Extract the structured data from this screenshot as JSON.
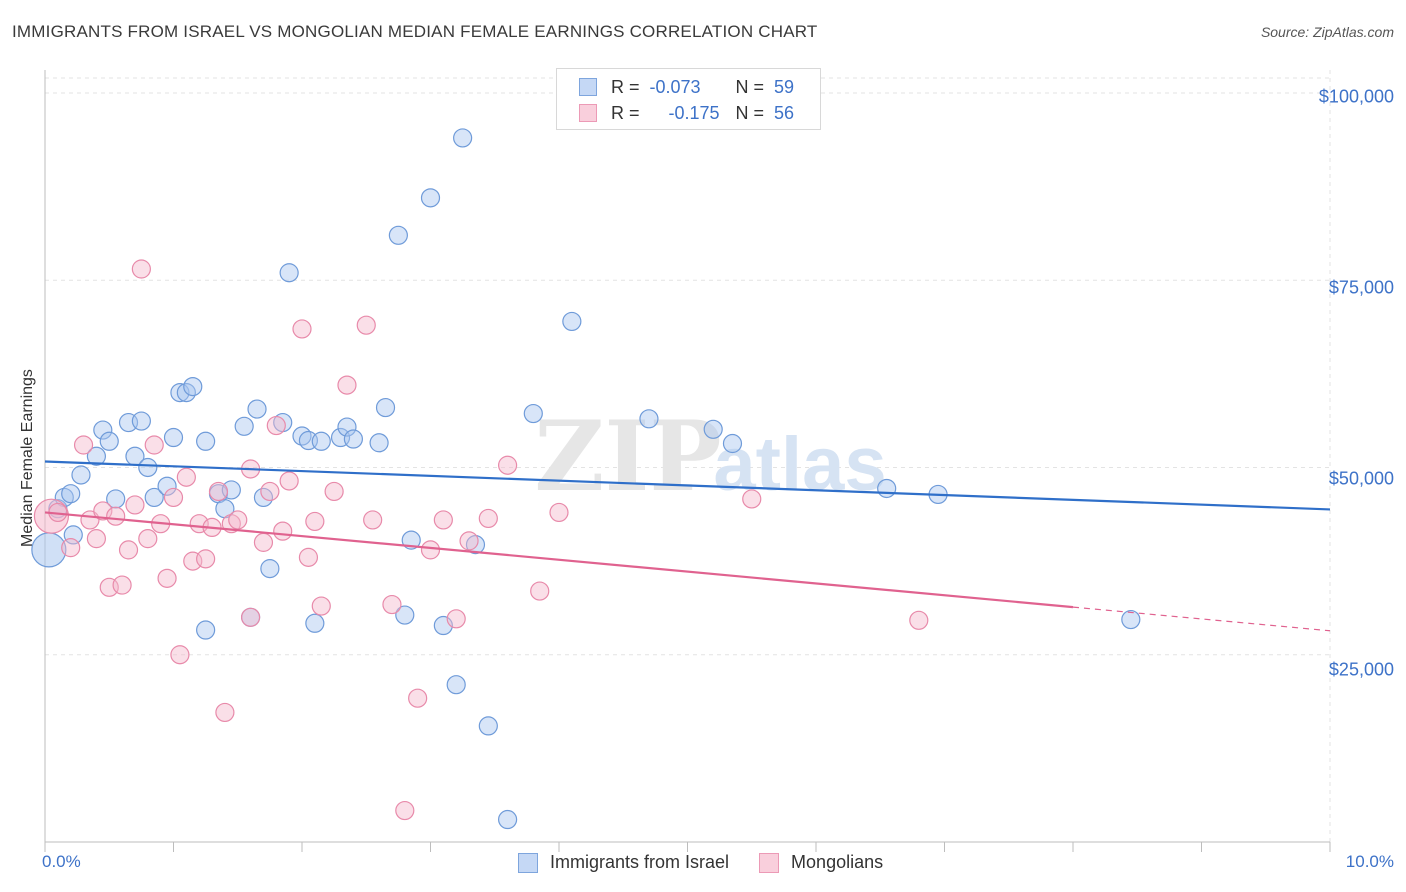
{
  "title": "IMMIGRANTS FROM ISRAEL VS MONGOLIAN MEDIAN FEMALE EARNINGS CORRELATION CHART",
  "source": "Source: ZipAtlas.com",
  "watermark": {
    "zip": "ZIP",
    "atlas": "atlas"
  },
  "legend": {
    "series1": {
      "r_label": "R =",
      "r_value": "-0.073",
      "n_label": "N =",
      "n_value": "59"
    },
    "series2": {
      "r_label": "R =",
      "r_value": "-0.175",
      "n_label": "N =",
      "n_value": "56"
    }
  },
  "colors": {
    "israel_fill": "#a9c6ef",
    "israel_stroke": "#6f9bd9",
    "israel_line": "#2f6fc9",
    "mongol_fill": "#f5b8cc",
    "mongol_stroke": "#e88aaa",
    "mongol_line": "#e0628f",
    "axis_text": "#3d72c8",
    "grid": "#e3e3e3"
  },
  "chart_data": {
    "type": "scatter",
    "ylabel": "Median Female Earnings",
    "x_tick_labels": {
      "left": "0.0%",
      "right": "10.0%"
    },
    "y_ticks": [
      {
        "value": 25000,
        "label": "$25,000"
      },
      {
        "value": 50000,
        "label": "$50,000"
      },
      {
        "value": 75000,
        "label": "$75,000"
      },
      {
        "value": 100000,
        "label": "$100,000"
      }
    ],
    "xlim": [
      0,
      10
    ],
    "ylim": [
      0,
      102000
    ],
    "series": [
      {
        "name": "Immigrants from Israel",
        "color_key": "israel",
        "trend": {
          "x0": 0,
          "y0": 50800,
          "x1": 10,
          "y1": 44400,
          "solid_until": 10
        },
        "points": [
          [
            0.03,
            39000,
            1
          ],
          [
            0.1,
            44500,
            0
          ],
          [
            0.15,
            46000,
            0
          ],
          [
            0.2,
            46500,
            0
          ],
          [
            0.22,
            41000,
            0
          ],
          [
            0.28,
            49000,
            0
          ],
          [
            0.4,
            51500,
            0
          ],
          [
            0.45,
            55000,
            0
          ],
          [
            0.5,
            53500,
            0
          ],
          [
            0.55,
            45800,
            0
          ],
          [
            0.65,
            56000,
            0
          ],
          [
            0.7,
            51500,
            0
          ],
          [
            0.75,
            56200,
            0
          ],
          [
            0.8,
            50000,
            0
          ],
          [
            0.85,
            46000,
            0
          ],
          [
            0.95,
            47500,
            0
          ],
          [
            1.0,
            54000,
            0
          ],
          [
            1.05,
            60000,
            0
          ],
          [
            1.1,
            60000,
            0
          ],
          [
            1.15,
            60800,
            0
          ],
          [
            1.25,
            53500,
            0
          ],
          [
            1.25,
            28300,
            0
          ],
          [
            1.35,
            46500,
            0
          ],
          [
            1.4,
            44500,
            0
          ],
          [
            1.45,
            47000,
            0
          ],
          [
            1.55,
            55500,
            0
          ],
          [
            1.6,
            30000,
            0
          ],
          [
            1.65,
            57800,
            0
          ],
          [
            1.7,
            46000,
            0
          ],
          [
            1.75,
            36500,
            0
          ],
          [
            1.85,
            56000,
            0
          ],
          [
            1.9,
            76000,
            0
          ],
          [
            2.0,
            54200,
            0
          ],
          [
            2.05,
            53600,
            0
          ],
          [
            2.1,
            29200,
            0
          ],
          [
            2.15,
            53500,
            0
          ],
          [
            2.3,
            54000,
            0
          ],
          [
            2.35,
            55400,
            0
          ],
          [
            2.4,
            53800,
            0
          ],
          [
            2.6,
            53300,
            0
          ],
          [
            2.65,
            58000,
            0
          ],
          [
            2.75,
            81000,
            0
          ],
          [
            2.8,
            30300,
            0
          ],
          [
            2.85,
            40300,
            0
          ],
          [
            3.0,
            86000,
            0
          ],
          [
            3.1,
            28900,
            0
          ],
          [
            3.2,
            21000,
            0
          ],
          [
            3.25,
            94000,
            0
          ],
          [
            3.35,
            39700,
            0
          ],
          [
            3.45,
            15500,
            0
          ],
          [
            3.6,
            3000,
            0
          ],
          [
            3.8,
            57200,
            0
          ],
          [
            4.1,
            69500,
            0
          ],
          [
            4.7,
            56500,
            0
          ],
          [
            5.2,
            55100,
            0
          ],
          [
            5.35,
            53200,
            0
          ],
          [
            6.55,
            47200,
            0
          ],
          [
            6.95,
            46400,
            0
          ],
          [
            8.45,
            29700,
            0
          ]
        ]
      },
      {
        "name": "Mongolians",
        "color_key": "mongol",
        "trend": {
          "x0": 0,
          "y0": 44000,
          "x1": 10,
          "y1": 28200,
          "solid_until": 8
        },
        "points": [
          [
            0.05,
            43500,
            1
          ],
          [
            0.1,
            44000,
            0
          ],
          [
            0.2,
            39300,
            0
          ],
          [
            0.3,
            53000,
            0
          ],
          [
            0.35,
            43000,
            0
          ],
          [
            0.4,
            40500,
            0
          ],
          [
            0.45,
            44200,
            0
          ],
          [
            0.5,
            34000,
            0
          ],
          [
            0.55,
            43500,
            0
          ],
          [
            0.6,
            34300,
            0
          ],
          [
            0.65,
            39000,
            0
          ],
          [
            0.7,
            45000,
            0
          ],
          [
            0.75,
            76500,
            0
          ],
          [
            0.8,
            40500,
            0
          ],
          [
            0.85,
            53000,
            0
          ],
          [
            0.9,
            42500,
            0
          ],
          [
            0.95,
            35200,
            0
          ],
          [
            1.0,
            46000,
            0
          ],
          [
            1.05,
            25000,
            0
          ],
          [
            1.1,
            48700,
            0
          ],
          [
            1.15,
            37500,
            0
          ],
          [
            1.2,
            42500,
            0
          ],
          [
            1.25,
            37800,
            0
          ],
          [
            1.3,
            42000,
            0
          ],
          [
            1.35,
            46800,
            0
          ],
          [
            1.4,
            17300,
            0
          ],
          [
            1.45,
            42500,
            0
          ],
          [
            1.5,
            43000,
            0
          ],
          [
            1.6,
            49800,
            0
          ],
          [
            1.6,
            30000,
            0
          ],
          [
            1.7,
            40000,
            0
          ],
          [
            1.75,
            46800,
            0
          ],
          [
            1.8,
            55600,
            0
          ],
          [
            1.85,
            41500,
            0
          ],
          [
            1.9,
            48200,
            0
          ],
          [
            2.0,
            68500,
            0
          ],
          [
            2.05,
            38000,
            0
          ],
          [
            2.1,
            42800,
            0
          ],
          [
            2.15,
            31500,
            0
          ],
          [
            2.25,
            46800,
            0
          ],
          [
            2.35,
            61000,
            0
          ],
          [
            2.5,
            69000,
            0
          ],
          [
            2.55,
            43000,
            0
          ],
          [
            2.7,
            31700,
            0
          ],
          [
            2.8,
            4200,
            0
          ],
          [
            2.9,
            19200,
            0
          ],
          [
            3.0,
            39000,
            0
          ],
          [
            3.1,
            43000,
            0
          ],
          [
            3.2,
            29800,
            0
          ],
          [
            3.3,
            40200,
            0
          ],
          [
            3.45,
            43200,
            0
          ],
          [
            3.6,
            50300,
            0
          ],
          [
            3.85,
            33500,
            0
          ],
          [
            4.0,
            44000,
            0
          ],
          [
            5.5,
            45800,
            0
          ],
          [
            6.8,
            29600,
            0
          ]
        ]
      }
    ]
  }
}
